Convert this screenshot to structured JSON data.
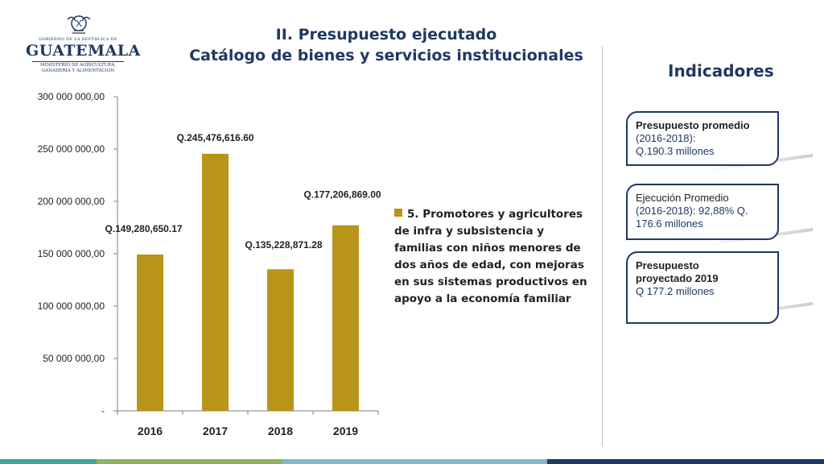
{
  "logo": {
    "line1": "GOBIERNO DE LA REPÚBLICA DE",
    "line2": "GUATEMALA",
    "line3a": "MINISTERIO DE AGRICULTURA,",
    "line3b": "GANADERÍA Y ALIMENTACIÓN",
    "emblem": "coat-of-arms-icon"
  },
  "title": {
    "line1": "II. Presupuesto ejecutado",
    "line2": "Catálogo de bienes y servicios institucionales"
  },
  "indicadores": {
    "heading": "Indicadores",
    "cards": [
      {
        "strong": "Presupuesto promedio",
        "body1": "(2016-2018):",
        "body2": "Q.190.3 millones"
      },
      {
        "strong": "Ejecución Promedio",
        "body1": "(2016-2018): 92,88% Q.",
        "body2": "176.6 millones"
      },
      {
        "strong": "Presupuesto",
        "strong2": "proyectado 2019",
        "body1": "Q 177.2 millones"
      }
    ]
  },
  "colors": {
    "bar": "#b8941b",
    "title": "#1f3864",
    "footer": [
      "#5b9bd5",
      "#3fa69a",
      "#8cb55e",
      "#7fb8c7",
      "#1f3864"
    ]
  },
  "chart_data": {
    "type": "bar",
    "categories": [
      "2016",
      "2017",
      "2018",
      "2019"
    ],
    "series": [
      {
        "name": "5. Promotores y agricultores de infra y subsistencia y familias con niños menores de dos años de edad, con mejoras en sus sistemas productivos en apoyo a la economía familiar",
        "values": [
          149280650.17,
          245476616.6,
          135228871.28,
          177206869.0
        ]
      }
    ],
    "data_labels": [
      "Q.149,280,650.17",
      "Q.245,476,616.60",
      "Q.135,228,871.28",
      "Q.177,206,869.00"
    ],
    "yticks": [
      0,
      50000000,
      100000000,
      150000000,
      200000000,
      250000000,
      300000000
    ],
    "ytick_labels": [
      "-",
      "50 000 000,00",
      "100 000 000,00",
      "150 000 000,00",
      "200 000 000,00",
      "250 000 000,00",
      "300 000 000,00"
    ],
    "ylim": [
      0,
      300000000
    ],
    "title": "",
    "xlabel": "",
    "ylabel": "",
    "legend_position": "right",
    "grid": false
  }
}
